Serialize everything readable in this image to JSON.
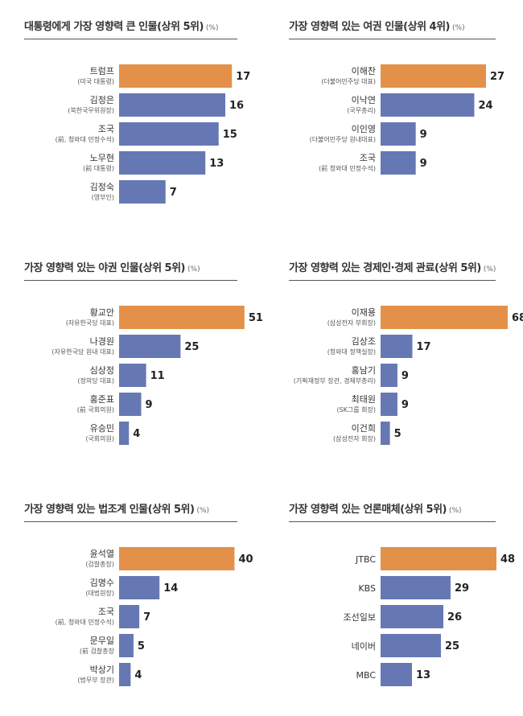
{
  "chart_data": [
    {
      "type": "bar",
      "orientation": "horizontal",
      "title": "대통령에게 가장 영향력 큰 인물(상위 5위)",
      "unit": "(%)",
      "categories": [
        "트럼프",
        "김정은",
        "조국",
        "노무현",
        "김정숙"
      ],
      "subtitles": [
        "(미국 대통령)",
        "(북한국무위원장)",
        "(前, 청와대 민정수석)",
        "(前 대통령)",
        "(영부인)"
      ],
      "values": [
        17,
        16,
        15,
        13,
        7
      ],
      "highlight": [
        0
      ],
      "xlim": [
        0,
        20
      ]
    },
    {
      "type": "bar",
      "orientation": "horizontal",
      "title": "가장 영향력 있는 여권 인물(상위 4위)",
      "unit": "(%)",
      "categories": [
        "이해찬",
        "이낙연",
        "이인영",
        "조국"
      ],
      "subtitles": [
        "(더불어민주당 대표)",
        "(국무총리)",
        "(더불어민주당 원내대표)",
        "(前 청와대 민정수석)"
      ],
      "values": [
        27,
        24,
        9,
        9
      ],
      "highlight": [
        0
      ],
      "xlim": [
        0,
        34
      ]
    },
    {
      "type": "bar",
      "orientation": "horizontal",
      "title": "가장 영향력 있는 야권 인물(상위 5위)",
      "unit": "(%)",
      "categories": [
        "황교안",
        "나경원",
        "심상정",
        "홍준표",
        "유승민"
      ],
      "subtitles": [
        "(자유한국당 대표)",
        "(자유한국당 원내 대표)",
        "(정의당 대표)",
        "(前 국회의원)",
        "(국회의원)"
      ],
      "values": [
        51,
        25,
        11,
        9,
        4
      ],
      "highlight": [
        0
      ],
      "xlim": [
        0,
        54
      ]
    },
    {
      "type": "bar",
      "orientation": "horizontal",
      "title": "가장 영향력 있는 경제인·경제 관료(상위 5위)",
      "unit": "(%)",
      "categories": [
        "이재용",
        "김상조",
        "홍남기",
        "최태원",
        "이건희"
      ],
      "subtitles": [
        "(삼성전자 부회장)",
        "(청와대 정책실장)",
        "(기획재정부 장관, 경제부총리)",
        "(SK그룹 회장)",
        "(삼성전자 회장)"
      ],
      "values": [
        68,
        17,
        9,
        9,
        5
      ],
      "highlight": [
        0
      ],
      "xlim": [
        0,
        71
      ]
    },
    {
      "type": "bar",
      "orientation": "horizontal",
      "title": "가장 영향력 있는 법조계 인물(상위 5위)",
      "unit": "(%)",
      "categories": [
        "윤석열",
        "김명수",
        "조국",
        "문무일",
        "박상기"
      ],
      "subtitles": [
        "(검찰총장)",
        "(대법원장)",
        "(前, 청와대 민정수석)",
        "(前 검찰총장",
        "(법무부 장관)"
      ],
      "values": [
        40,
        14,
        7,
        5,
        4
      ],
      "highlight": [
        0
      ],
      "xlim": [
        0,
        46
      ]
    },
    {
      "type": "bar",
      "orientation": "horizontal",
      "title": "가장 영향력 있는 언론매체(상위 5위)",
      "unit": "(%)",
      "categories": [
        "JTBC",
        "KBS",
        "조선일보",
        "네이버",
        "MBC"
      ],
      "subtitles": [
        "",
        "",
        "",
        "",
        ""
      ],
      "values": [
        48,
        29,
        26,
        25,
        13
      ],
      "highlight": [
        0
      ],
      "xlim": [
        0,
        55
      ]
    }
  ],
  "colors": {
    "highlight": "#e39148",
    "default": "#6678b4",
    "title_rule": "#555555"
  }
}
